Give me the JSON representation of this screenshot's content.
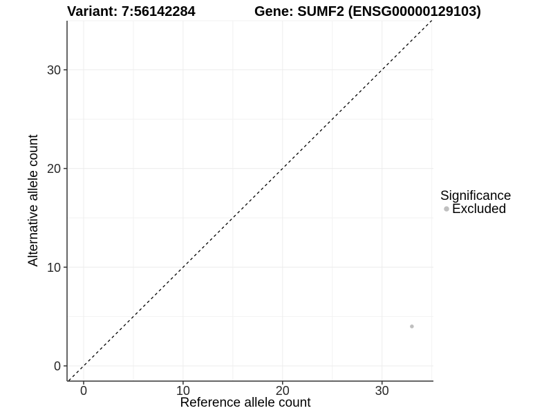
{
  "chart_data": {
    "type": "scatter",
    "title_variant": "Variant: 7:56142284",
    "title_gene": "Gene: SUMF2 (ENSG00000129103)",
    "xlabel": "Reference allele count",
    "ylabel": "Alternative allele count",
    "xlim": [
      -1.7,
      35.2
    ],
    "ylim": [
      -1.5,
      35.0
    ],
    "x_ticks": [
      0,
      10,
      20,
      30
    ],
    "y_ticks": [
      0,
      10,
      20,
      30
    ],
    "x_minor_ticks": [
      5,
      15,
      25,
      35
    ],
    "y_minor_ticks": [
      5,
      15,
      25,
      35
    ],
    "grid": true,
    "identity_line": {
      "slope": 1,
      "intercept": 0,
      "style": "dashed",
      "color": "#000000"
    },
    "series": [
      {
        "name": "Excluded",
        "color": "#bfbfbf",
        "point_radius": 2.8,
        "points": [
          {
            "x": 33,
            "y": 4
          }
        ]
      }
    ],
    "legend": {
      "position": "right",
      "title": "Significance",
      "items": [
        {
          "label": "Excluded",
          "color": "#bfbfbf"
        }
      ]
    },
    "colors": {
      "grid_major": "#ececec",
      "grid_minor": "#f2f2f2",
      "axis_line": "#333333",
      "tick_label": "#262626",
      "background": "#ffffff"
    }
  }
}
